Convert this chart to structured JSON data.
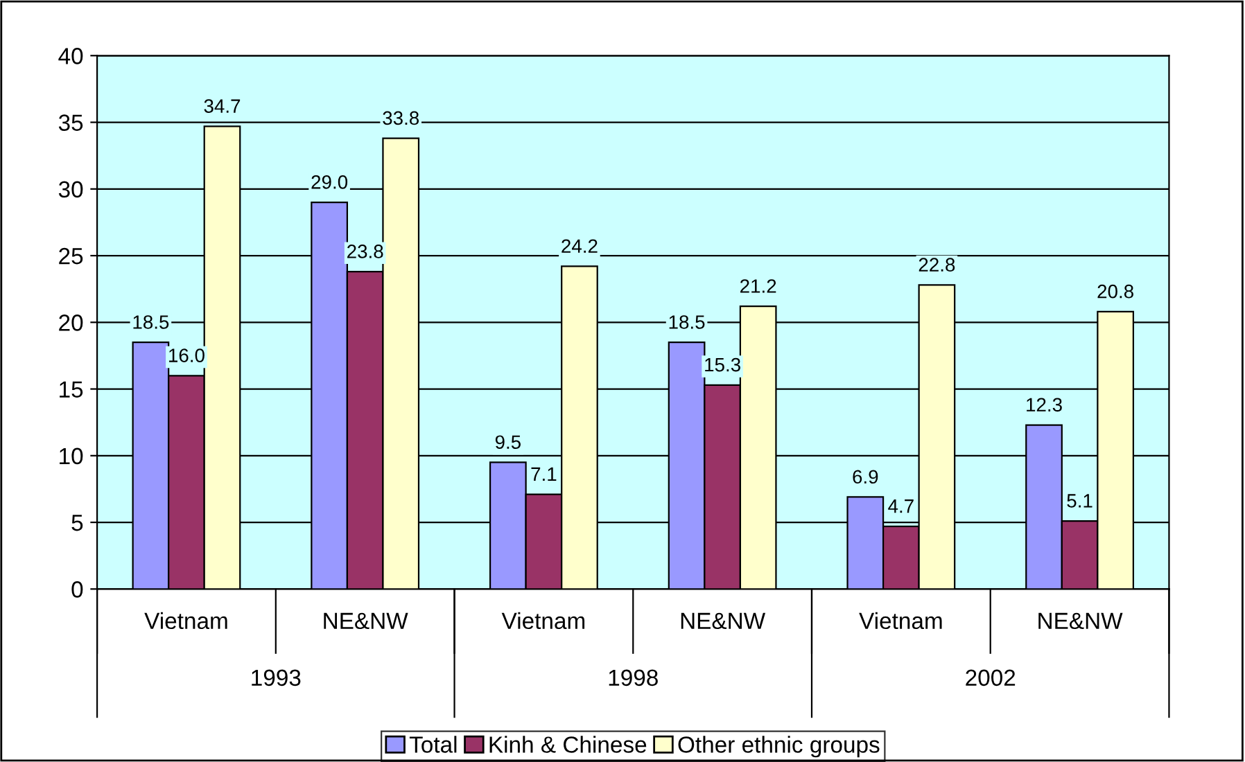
{
  "chart_data": {
    "type": "bar",
    "categories": [
      "Vietnam",
      "NE&NW",
      "Vietnam",
      "NE&NW",
      "Vietnam",
      "NE&NW"
    ],
    "series": [
      {
        "name": "Total",
        "color": "#9999ff",
        "values": [
          18.5,
          29.0,
          9.5,
          18.5,
          6.9,
          12.3
        ],
        "value_labels": [
          "18.5",
          "29.0",
          "9.5",
          "18.5",
          "6.9",
          "12.3"
        ]
      },
      {
        "name": "Kinh & Chinese",
        "color": "#993366",
        "values": [
          16.0,
          23.8,
          7.1,
          15.3,
          4.7,
          5.1
        ],
        "value_labels": [
          "16.0",
          "23.8",
          "7.1",
          "15.3",
          "4.7",
          "5.1"
        ]
      },
      {
        "name": "Other ethnic groups",
        "color": "#ffffcc",
        "values": [
          34.7,
          33.8,
          24.2,
          21.2,
          22.8,
          20.8
        ],
        "value_labels": [
          "34.7",
          "33.8",
          "24.2",
          "21.2",
          "22.8",
          "20.8"
        ]
      }
    ],
    "annotations": [
      "1993",
      "1998",
      "2002"
    ],
    "ylim": [
      0,
      40
    ],
    "yticks": [
      0,
      5,
      10,
      15,
      20,
      25,
      30,
      35,
      40
    ],
    "grid": "y",
    "legend": "bottom"
  }
}
